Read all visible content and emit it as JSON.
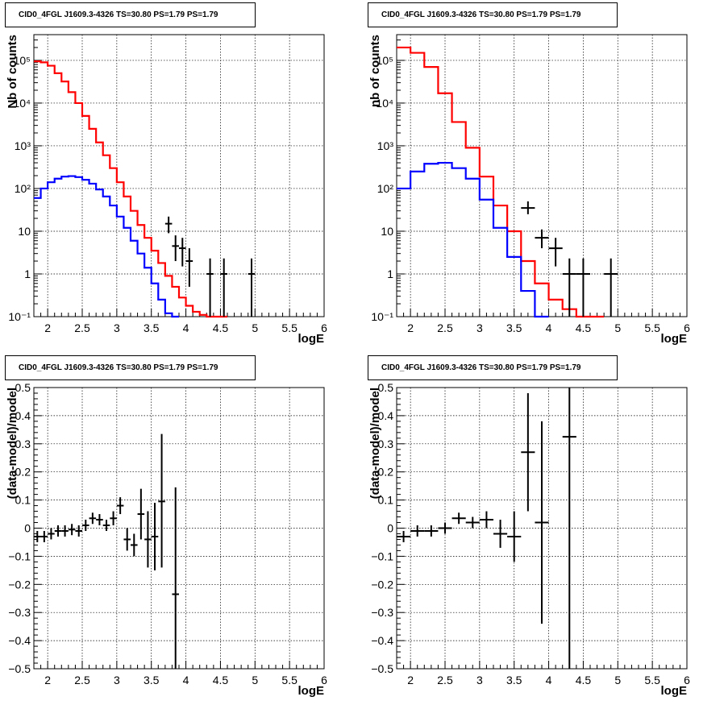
{
  "chart_data": [
    {
      "type": "line",
      "title": "CID0_4FGL J1609.3-4326 TS=30.80 PS=1.79 PS=1.79",
      "xlabel": "logE",
      "ylabel": "Nb of counts",
      "xlim": [
        1.8,
        6.0
      ],
      "ylim": [
        0.1,
        400000
      ],
      "yscale": "log",
      "grid": true,
      "x_ticks": [
        "2",
        "2.5",
        "3",
        "3.5",
        "4",
        "4.5",
        "5",
        "5.5",
        "6"
      ],
      "y_ticks": [
        "10⁻¹",
        "1",
        "10",
        "10²",
        "10³",
        "10⁴",
        "10⁵"
      ],
      "series": [
        {
          "color": "#ff0000",
          "style": "step",
          "edges": [
            1.8,
            1.9,
            2.0,
            2.1,
            2.2,
            2.3,
            2.4,
            2.5,
            2.6,
            2.7,
            2.8,
            2.9,
            3.0,
            3.1,
            3.2,
            3.3,
            3.4,
            3.5,
            3.6,
            3.7,
            3.8,
            3.9,
            4.0,
            4.1,
            4.2,
            4.3,
            4.4,
            4.5,
            4.6
          ],
          "values": [
            95000,
            90000,
            75000,
            50000,
            32000,
            18000,
            10000,
            5000,
            2500,
            1200,
            600,
            300,
            140,
            65,
            30,
            14,
            7,
            3.5,
            1.8,
            0.9,
            0.5,
            0.28,
            0.18,
            0.13,
            0.11,
            0.1,
            0.1,
            0.1
          ]
        },
        {
          "color": "#0000ff",
          "style": "step",
          "edges": [
            1.8,
            1.9,
            2.0,
            2.1,
            2.2,
            2.3,
            2.4,
            2.5,
            2.6,
            2.7,
            2.8,
            2.9,
            3.0,
            3.1,
            3.2,
            3.3,
            3.4,
            3.5,
            3.6,
            3.7,
            3.8,
            3.9
          ],
          "values": [
            60,
            100,
            140,
            170,
            190,
            195,
            185,
            160,
            130,
            95,
            65,
            40,
            22,
            12,
            6,
            3,
            1.4,
            0.6,
            0.25,
            0.12,
            0.1
          ]
        },
        {
          "color": "#000000",
          "style": "errorbars",
          "points": [
            {
              "x": 3.75,
              "y": 15,
              "xerr": 0.05,
              "lo": 9,
              "hi": 22
            },
            {
              "x": 3.85,
              "y": 4.5,
              "xerr": 0.05,
              "lo": 2,
              "hi": 8
            },
            {
              "x": 3.95,
              "y": 4,
              "xerr": 0.05,
              "lo": 1.5,
              "hi": 7
            },
            {
              "x": 4.05,
              "y": 2,
              "xerr": 0.05,
              "lo": 0.5,
              "hi": 4
            },
            {
              "x": 4.35,
              "y": 1,
              "xerr": 0.05,
              "lo": 0.1,
              "hi": 2.3
            },
            {
              "x": 4.55,
              "y": 1,
              "xerr": 0.05,
              "lo": 0.1,
              "hi": 2.3
            },
            {
              "x": 4.95,
              "y": 1,
              "xerr": 0.05,
              "lo": 0.1,
              "hi": 2.3
            }
          ]
        }
      ]
    },
    {
      "type": "line",
      "title": "CID0_4FGL J1609.3-4326 TS=30.80 PS=1.79 PS=1.79",
      "xlabel": "logE",
      "ylabel": "nb of counts",
      "xlim": [
        1.8,
        6.0
      ],
      "ylim": [
        0.1,
        400000
      ],
      "yscale": "log",
      "grid": true,
      "x_ticks": [
        "2",
        "2.5",
        "3",
        "3.5",
        "4",
        "4.5",
        "5",
        "5.5",
        "6"
      ],
      "y_ticks": [
        "10⁻¹",
        "1",
        "10",
        "10²",
        "10³",
        "10⁴",
        "10⁵"
      ],
      "series": [
        {
          "color": "#ff0000",
          "style": "step",
          "edges": [
            1.8,
            2.0,
            2.2,
            2.4,
            2.6,
            2.8,
            3.0,
            3.2,
            3.4,
            3.6,
            3.8,
            4.0,
            4.2,
            4.4,
            4.6,
            4.8
          ],
          "values": [
            200000,
            150000,
            70000,
            17000,
            3600,
            900,
            190,
            40,
            10,
            2,
            0.6,
            0.25,
            0.15,
            0.1,
            0.1
          ]
        },
        {
          "color": "#0000ff",
          "style": "step",
          "edges": [
            1.8,
            2.0,
            2.2,
            2.4,
            2.6,
            2.8,
            3.0,
            3.2,
            3.4,
            3.6,
            3.8,
            4.0
          ],
          "values": [
            100,
            250,
            380,
            400,
            300,
            170,
            55,
            12,
            2.5,
            0.4,
            0.1
          ]
        },
        {
          "color": "#000000",
          "style": "errorbars",
          "points": [
            {
              "x": 3.7,
              "y": 35,
              "xerr": 0.1,
              "lo": 25,
              "hi": 50
            },
            {
              "x": 3.9,
              "y": 7,
              "xerr": 0.1,
              "lo": 4,
              "hi": 11
            },
            {
              "x": 4.1,
              "y": 4,
              "xerr": 0.1,
              "lo": 1.5,
              "hi": 7
            },
            {
              "x": 4.3,
              "y": 1,
              "xerr": 0.1,
              "lo": 0.1,
              "hi": 2.3
            },
            {
              "x": 4.5,
              "y": 1,
              "xerr": 0.1,
              "lo": 0.1,
              "hi": 2.3
            },
            {
              "x": 4.9,
              "y": 1,
              "xerr": 0.1,
              "lo": 0.1,
              "hi": 2.3
            }
          ]
        }
      ]
    },
    {
      "type": "scatter",
      "title": "CID0_4FGL J1609.3-4326 TS=30.80 PS=1.79 PS=1.79",
      "xlabel": "logE",
      "ylabel": "(data-model)/model",
      "xlim": [
        1.8,
        6.0
      ],
      "ylim": [
        -0.5,
        0.5
      ],
      "yscale": "linear",
      "grid": true,
      "x_ticks": [
        "2",
        "2.5",
        "3",
        "3.5",
        "4",
        "4.5",
        "5",
        "5.5",
        "6"
      ],
      "y_ticks": [
        "−0.5",
        "−0.4",
        "−0.3",
        "−0.2",
        "−0.1",
        "0",
        "0.1",
        "0.2",
        "0.3",
        "0.4",
        "0.5"
      ],
      "series": [
        {
          "color": "#000000",
          "style": "errorbars",
          "points": [
            {
              "x": 1.85,
              "y": -0.03,
              "xerr": 0.05,
              "lo": -0.05,
              "hi": -0.01
            },
            {
              "x": 1.95,
              "y": -0.03,
              "xerr": 0.05,
              "lo": -0.05,
              "hi": -0.01
            },
            {
              "x": 2.05,
              "y": -0.02,
              "xerr": 0.05,
              "lo": -0.04,
              "hi": 0.0
            },
            {
              "x": 2.15,
              "y": -0.01,
              "xerr": 0.05,
              "lo": -0.03,
              "hi": 0.01
            },
            {
              "x": 2.25,
              "y": -0.01,
              "xerr": 0.05,
              "lo": -0.03,
              "hi": 0.01
            },
            {
              "x": 2.35,
              "y": -0.005,
              "xerr": 0.05,
              "lo": -0.025,
              "hi": 0.015
            },
            {
              "x": 2.45,
              "y": -0.01,
              "xerr": 0.05,
              "lo": -0.03,
              "hi": 0.01
            },
            {
              "x": 2.55,
              "y": 0.01,
              "xerr": 0.05,
              "lo": -0.01,
              "hi": 0.03
            },
            {
              "x": 2.65,
              "y": 0.035,
              "xerr": 0.05,
              "lo": 0.015,
              "hi": 0.055
            },
            {
              "x": 2.75,
              "y": 0.03,
              "xerr": 0.05,
              "lo": 0.01,
              "hi": 0.05
            },
            {
              "x": 2.85,
              "y": 0.01,
              "xerr": 0.05,
              "lo": -0.01,
              "hi": 0.03
            },
            {
              "x": 2.95,
              "y": 0.035,
              "xerr": 0.05,
              "lo": 0.01,
              "hi": 0.06
            },
            {
              "x": 3.05,
              "y": 0.08,
              "xerr": 0.05,
              "lo": 0.05,
              "hi": 0.11
            },
            {
              "x": 3.15,
              "y": -0.04,
              "xerr": 0.05,
              "lo": -0.08,
              "hi": 0.0
            },
            {
              "x": 3.25,
              "y": -0.06,
              "xerr": 0.05,
              "lo": -0.1,
              "hi": -0.02
            },
            {
              "x": 3.35,
              "y": 0.05,
              "xerr": 0.05,
              "lo": -0.04,
              "hi": 0.14
            },
            {
              "x": 3.45,
              "y": -0.04,
              "xerr": 0.05,
              "lo": -0.14,
              "hi": 0.06
            },
            {
              "x": 3.55,
              "y": -0.03,
              "xerr": 0.05,
              "lo": -0.15,
              "hi": 0.09
            },
            {
              "x": 3.65,
              "y": 0.095,
              "xerr": 0.05,
              "lo": -0.14,
              "hi": 0.335
            },
            {
              "x": 3.85,
              "y": -0.235,
              "xerr": 0.05,
              "lo": -0.5,
              "hi": 0.145
            }
          ]
        }
      ]
    },
    {
      "type": "scatter",
      "title": "CID0_4FGL J1609.3-4326 TS=30.80 PS=1.79 PS=1.79",
      "xlabel": "logE",
      "ylabel": "(data-model)/model",
      "xlim": [
        1.8,
        6.0
      ],
      "ylim": [
        -0.5,
        0.5
      ],
      "yscale": "linear",
      "grid": true,
      "x_ticks": [
        "2",
        "2.5",
        "3",
        "3.5",
        "4",
        "4.5",
        "5",
        "5.5",
        "6"
      ],
      "y_ticks": [
        "−0.5",
        "−0.4",
        "−0.3",
        "−0.2",
        "−0.1",
        "0",
        "0.1",
        "0.2",
        "0.3",
        "0.4",
        "0.5"
      ],
      "series": [
        {
          "color": "#000000",
          "style": "errorbars",
          "points": [
            {
              "x": 1.9,
              "y": -0.03,
              "xerr": 0.1,
              "lo": -0.05,
              "hi": -0.01
            },
            {
              "x": 2.1,
              "y": -0.01,
              "xerr": 0.1,
              "lo": -0.03,
              "hi": 0.01
            },
            {
              "x": 2.3,
              "y": -0.01,
              "xerr": 0.1,
              "lo": -0.03,
              "hi": 0.01
            },
            {
              "x": 2.5,
              "y": 0.0,
              "xerr": 0.1,
              "lo": -0.02,
              "hi": 0.02
            },
            {
              "x": 2.7,
              "y": 0.035,
              "xerr": 0.1,
              "lo": 0.015,
              "hi": 0.055
            },
            {
              "x": 2.9,
              "y": 0.02,
              "xerr": 0.1,
              "lo": 0.0,
              "hi": 0.04
            },
            {
              "x": 3.1,
              "y": 0.03,
              "xerr": 0.1,
              "lo": 0.0,
              "hi": 0.06
            },
            {
              "x": 3.3,
              "y": -0.02,
              "xerr": 0.1,
              "lo": -0.07,
              "hi": 0.03
            },
            {
              "x": 3.5,
              "y": -0.03,
              "xerr": 0.1,
              "lo": -0.12,
              "hi": 0.06
            },
            {
              "x": 3.7,
              "y": 0.27,
              "xerr": 0.1,
              "lo": 0.06,
              "hi": 0.48
            },
            {
              "x": 3.9,
              "y": 0.02,
              "xerr": 0.1,
              "lo": -0.34,
              "hi": 0.38
            },
            {
              "x": 4.3,
              "y": 0.325,
              "xerr": 0.1,
              "lo": -0.5,
              "hi": 0.5
            }
          ]
        }
      ]
    }
  ]
}
